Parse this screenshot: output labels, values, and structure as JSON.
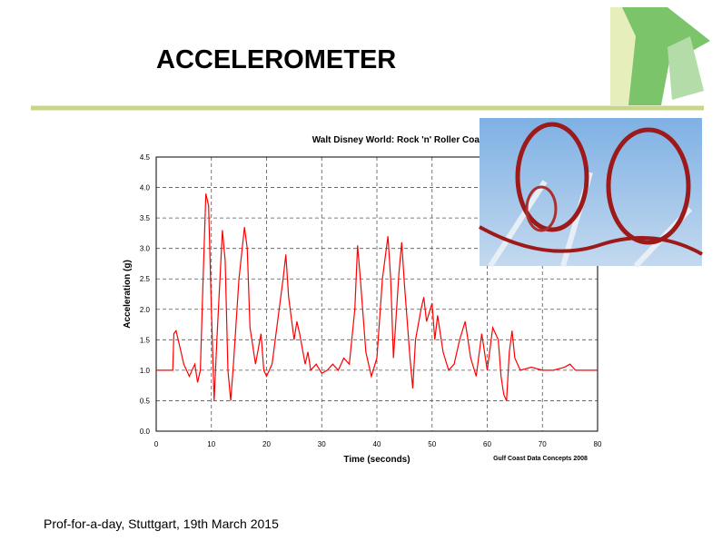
{
  "slide": {
    "title": "ACCELEROMETER",
    "footer": "Prof-for-a-day, Stuttgart, 19th March 2015"
  },
  "chart_data": {
    "type": "line",
    "title": "Walt Disney World: Rock 'n' Roller Coaster",
    "x_label": "Time (seconds)",
    "y_label": "Acceleration (g)",
    "annotation": "Gulf Coast Data Concepts 2008",
    "xlim": [
      0,
      80
    ],
    "xticks": [
      0,
      10,
      20,
      30,
      40,
      50,
      60,
      70,
      80
    ],
    "ylim": [
      0,
      4.5
    ],
    "yticks": [
      {
        "value": 0,
        "label": "0.0"
      },
      0.5,
      {
        "value": 1,
        "label": "1.0"
      },
      1.5,
      {
        "value": 2,
        "label": "2.0"
      },
      2.5,
      {
        "value": 3,
        "label": "3.0"
      },
      3.5,
      {
        "value": 4,
        "label": "4.0"
      },
      4.5
    ],
    "grid": true,
    "series": [
      {
        "name": "Acceleration",
        "color": "#ff0000",
        "x": [
          0,
          2,
          3,
          3.2,
          3.6,
          4.5,
          5,
          6,
          7,
          7.5,
          8,
          8.5,
          9,
          9.5,
          10,
          10.5,
          11,
          12,
          12.5,
          13,
          13.5,
          14,
          15,
          16,
          16.5,
          17,
          18,
          19,
          19.5,
          20,
          21,
          22,
          23,
          23.5,
          24,
          25,
          25.5,
          26,
          27,
          27.5,
          28,
          29,
          30,
          31,
          32,
          33,
          34,
          35,
          36,
          36.5,
          37,
          38,
          39,
          40,
          41,
          42,
          42.5,
          43,
          44,
          44.5,
          45,
          46,
          46.5,
          47,
          48,
          48.5,
          49,
          50,
          50.5,
          51,
          52,
          53,
          54,
          55,
          56,
          57,
          58,
          59,
          60,
          61,
          62,
          62.5,
          63,
          63.5,
          64,
          64.5,
          65,
          66,
          68,
          70,
          72,
          74,
          75,
          76,
          78,
          80
        ],
        "values": [
          1.0,
          1.0,
          1.0,
          1.6,
          1.65,
          1.3,
          1.1,
          0.9,
          1.1,
          0.8,
          1.0,
          2.5,
          3.9,
          3.7,
          2.0,
          0.5,
          1.5,
          3.3,
          2.8,
          1.0,
          0.5,
          1.1,
          2.5,
          3.35,
          3.0,
          1.7,
          1.1,
          1.6,
          1.0,
          0.9,
          1.1,
          1.8,
          2.5,
          2.9,
          2.2,
          1.5,
          1.8,
          1.6,
          1.1,
          1.3,
          1.0,
          1.1,
          0.95,
          1.0,
          1.1,
          1.0,
          1.2,
          1.1,
          2.0,
          3.05,
          2.5,
          1.3,
          0.9,
          1.2,
          2.5,
          3.2,
          2.5,
          1.2,
          2.6,
          3.1,
          2.4,
          1.2,
          0.7,
          1.5,
          2.0,
          2.2,
          1.8,
          2.1,
          1.5,
          1.9,
          1.3,
          1.0,
          1.1,
          1.5,
          1.8,
          1.2,
          0.9,
          1.6,
          1.0,
          1.7,
          1.5,
          0.9,
          0.6,
          0.5,
          1.3,
          1.65,
          1.2,
          1.0,
          1.05,
          1.0,
          1.0,
          1.05,
          1.1,
          1.0,
          1.0,
          1.0
        ]
      }
    ]
  }
}
